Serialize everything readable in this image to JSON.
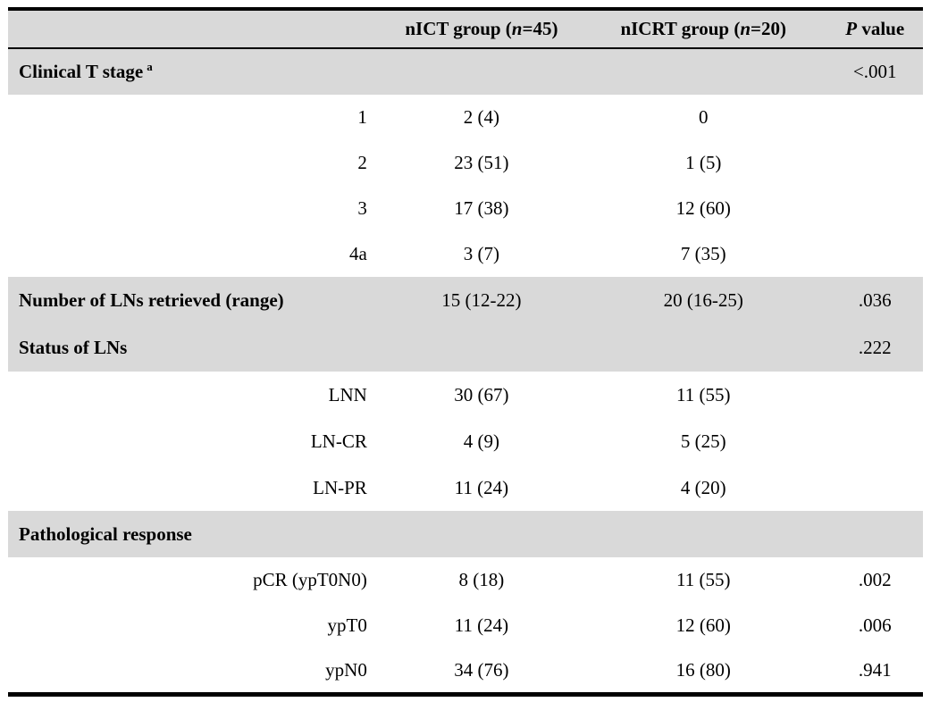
{
  "table": {
    "header": {
      "col0": "",
      "nict": {
        "pre": "nICT group (",
        "n": "n",
        "post": "=45)"
      },
      "nicrt": {
        "pre": "nICRT group (",
        "n": "n",
        "post": "=20)"
      },
      "pvalue": {
        "italic": "P",
        "rest": " value"
      }
    },
    "rows": [
      {
        "type": "section",
        "label": "Clinical T stage",
        "sup": "a",
        "nict": "",
        "nicrt": "",
        "p": "<.001",
        "shaded": true
      },
      {
        "type": "sub",
        "label": "1",
        "nict": "2 (4)",
        "nicrt": "0",
        "p": ""
      },
      {
        "type": "sub",
        "label": "2",
        "nict": "23 (51)",
        "nicrt": "1 (5)",
        "p": ""
      },
      {
        "type": "sub",
        "label": "3",
        "nict": "17 (38)",
        "nicrt": "12 (60)",
        "p": ""
      },
      {
        "type": "sub",
        "label": "4a",
        "nict": "3 (7)",
        "nicrt": "7 (35)",
        "p": ""
      },
      {
        "type": "section",
        "label": "Number of LNs retrieved (range)",
        "nict": "15 (12-22)",
        "nicrt": "20 (16-25)",
        "p": ".036",
        "shaded": true
      },
      {
        "type": "section",
        "label": "Status of LNs",
        "nict": "",
        "nicrt": "",
        "p": ".222",
        "shaded": true
      },
      {
        "type": "sub",
        "label": "LNN",
        "nict": "30 (67)",
        "nicrt": "11 (55)",
        "p": ""
      },
      {
        "type": "sub",
        "label": "LN-CR",
        "nict": "4 (9)",
        "nicrt": "5 (25)",
        "p": ""
      },
      {
        "type": "sub",
        "label": "LN-PR",
        "nict": "11 (24)",
        "nicrt": "4 (20)",
        "p": ""
      },
      {
        "type": "section",
        "label": "Pathological response",
        "nict": "",
        "nicrt": "",
        "p": "",
        "shaded": true
      },
      {
        "type": "sub",
        "label": "pCR (ypT0N0)",
        "nict": "8 (18)",
        "nicrt": "11 (55)",
        "p": ".002"
      },
      {
        "type": "sub",
        "label": "ypT0",
        "nict": "11 (24)",
        "nicrt": "12 (60)",
        "p": ".006"
      },
      {
        "type": "sub",
        "label": "ypN0",
        "nict": "34 (76)",
        "nicrt": "16 (80)",
        "p": ".941"
      }
    ],
    "colors": {
      "row_shading": "#d9d9d9",
      "border": "#000000",
      "text": "#000000",
      "background": "#ffffff"
    }
  }
}
